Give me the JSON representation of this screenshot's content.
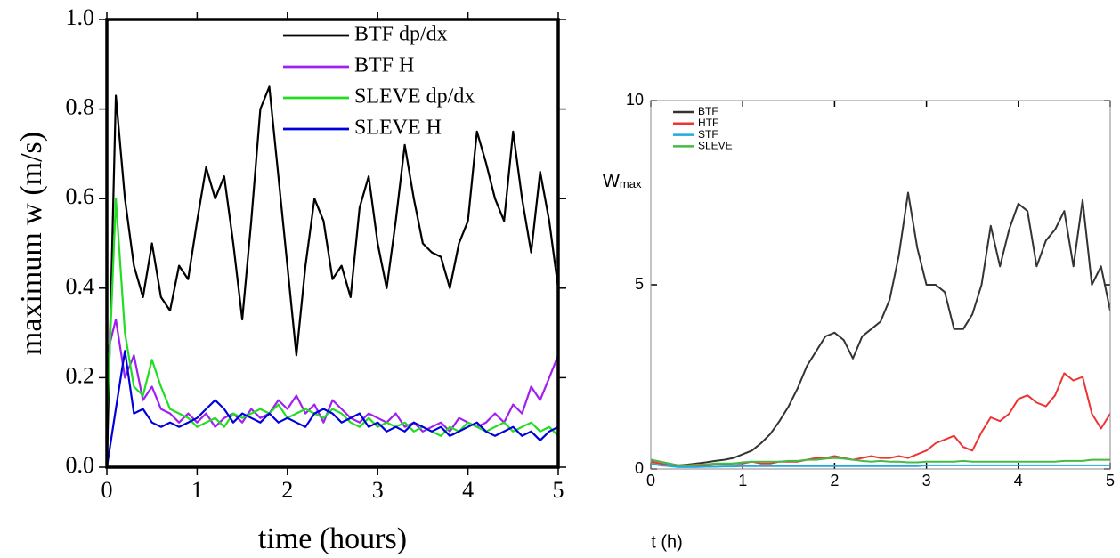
{
  "chart_data": [
    {
      "type": "line",
      "xlabel": "time (hours)",
      "ylabel": "maximum w (m/s)",
      "x": [
        0,
        0.1,
        0.2,
        0.3,
        0.4,
        0.5,
        0.6,
        0.7,
        0.8,
        0.9,
        1,
        1.1,
        1.2,
        1.3,
        1.4,
        1.5,
        1.6,
        1.7,
        1.8,
        1.9,
        2,
        2.1,
        2.2,
        2.3,
        2.4,
        2.5,
        2.6,
        2.7,
        2.8,
        2.9,
        3,
        3.1,
        3.2,
        3.3,
        3.4,
        3.5,
        3.6,
        3.7,
        3.8,
        3.9,
        4,
        4.1,
        4.2,
        4.3,
        4.4,
        4.5,
        4.6,
        4.7,
        4.8,
        4.9,
        5
      ],
      "xlim": [
        0,
        5
      ],
      "xticks": [
        0,
        1,
        2,
        3,
        4,
        5
      ],
      "ylim": [
        0,
        1
      ],
      "yticks": [
        {
          "value": 0,
          "label": "0.0"
        },
        {
          "value": 0.2,
          "label": "0.2"
        },
        {
          "value": 0.4,
          "label": "0.4"
        },
        {
          "value": 0.6,
          "label": "0.6"
        },
        {
          "value": 0.8,
          "label": "0.8"
        },
        {
          "value": 1,
          "label": "1.0"
        }
      ],
      "legend": "top-right",
      "series": [
        {
          "name": "BTF dp/dx",
          "color": "#000000",
          "values": [
            0,
            0.83,
            0.6,
            0.45,
            0.38,
            0.5,
            0.38,
            0.35,
            0.45,
            0.42,
            0.55,
            0.67,
            0.6,
            0.65,
            0.5,
            0.33,
            0.55,
            0.8,
            0.85,
            0.65,
            0.45,
            0.25,
            0.45,
            0.6,
            0.55,
            0.42,
            0.45,
            0.38,
            0.58,
            0.65,
            0.5,
            0.4,
            0.55,
            0.72,
            0.6,
            0.5,
            0.48,
            0.47,
            0.4,
            0.5,
            0.55,
            0.75,
            0.68,
            0.6,
            0.55,
            0.75,
            0.6,
            0.48,
            0.66,
            0.55,
            0.4
          ]
        },
        {
          "name": "BTF H",
          "color": "#a020f0",
          "values": [
            0.25,
            0.33,
            0.2,
            0.25,
            0.15,
            0.18,
            0.13,
            0.12,
            0.1,
            0.12,
            0.1,
            0.12,
            0.09,
            0.11,
            0.12,
            0.1,
            0.13,
            0.11,
            0.12,
            0.15,
            0.13,
            0.16,
            0.12,
            0.14,
            0.1,
            0.15,
            0.13,
            0.11,
            0.1,
            0.12,
            0.11,
            0.1,
            0.12,
            0.09,
            0.1,
            0.08,
            0.09,
            0.1,
            0.08,
            0.11,
            0.1,
            0.09,
            0.1,
            0.12,
            0.1,
            0.14,
            0.12,
            0.18,
            0.15,
            0.2,
            0.25
          ]
        },
        {
          "name": "SLEVE dp/dx",
          "color": "#22dd22",
          "values": [
            0.1,
            0.6,
            0.3,
            0.18,
            0.16,
            0.24,
            0.18,
            0.13,
            0.12,
            0.11,
            0.09,
            0.1,
            0.11,
            0.09,
            0.12,
            0.11,
            0.12,
            0.13,
            0.12,
            0.14,
            0.11,
            0.12,
            0.13,
            0.12,
            0.11,
            0.13,
            0.12,
            0.1,
            0.09,
            0.11,
            0.09,
            0.1,
            0.09,
            0.1,
            0.08,
            0.09,
            0.08,
            0.07,
            0.09,
            0.08,
            0.1,
            0.09,
            0.08,
            0.09,
            0.1,
            0.08,
            0.09,
            0.1,
            0.08,
            0.09,
            0.07
          ]
        },
        {
          "name": "SLEVE H",
          "color": "#0000dd",
          "values": [
            0,
            0.13,
            0.26,
            0.12,
            0.13,
            0.1,
            0.09,
            0.1,
            0.09,
            0.1,
            0.11,
            0.13,
            0.15,
            0.13,
            0.1,
            0.12,
            0.11,
            0.1,
            0.12,
            0.1,
            0.11,
            0.1,
            0.09,
            0.12,
            0.13,
            0.12,
            0.1,
            0.11,
            0.12,
            0.09,
            0.1,
            0.08,
            0.09,
            0.08,
            0.1,
            0.09,
            0.08,
            0.09,
            0.07,
            0.08,
            0.09,
            0.1,
            0.08,
            0.07,
            0.08,
            0.09,
            0.07,
            0.08,
            0.06,
            0.08,
            0.09
          ]
        }
      ]
    },
    {
      "type": "line",
      "xlabel": "t (h)",
      "ylabel": "W",
      "ylabel_sub": "max",
      "x": [
        0,
        0.1,
        0.2,
        0.3,
        0.4,
        0.5,
        0.6,
        0.7,
        0.8,
        0.9,
        1,
        1.1,
        1.2,
        1.3,
        1.4,
        1.5,
        1.6,
        1.7,
        1.8,
        1.9,
        2,
        2.1,
        2.2,
        2.3,
        2.4,
        2.5,
        2.6,
        2.7,
        2.8,
        2.9,
        3,
        3.1,
        3.2,
        3.3,
        3.4,
        3.5,
        3.6,
        3.7,
        3.8,
        3.9,
        4,
        4.1,
        4.2,
        4.3,
        4.4,
        4.5,
        4.6,
        4.7,
        4.8,
        4.9,
        5
      ],
      "xlim": [
        0,
        5
      ],
      "xticks": [
        0,
        1,
        2,
        3,
        4,
        5
      ],
      "ylim": [
        0,
        10
      ],
      "yticks": [
        0,
        5,
        10
      ],
      "legend": "top-left",
      "series": [
        {
          "name": "BTF",
          "color": "#333333",
          "values": [
            0.25,
            0.2,
            0.15,
            0.1,
            0.12,
            0.15,
            0.18,
            0.22,
            0.25,
            0.3,
            0.4,
            0.5,
            0.7,
            0.95,
            1.3,
            1.7,
            2.2,
            2.8,
            3.2,
            3.6,
            3.7,
            3.5,
            3.0,
            3.6,
            3.8,
            4.0,
            4.6,
            5.8,
            7.5,
            6.0,
            5.0,
            5.0,
            4.8,
            3.8,
            3.8,
            4.2,
            5.0,
            6.6,
            5.5,
            6.5,
            7.2,
            7.0,
            5.5,
            6.2,
            6.5,
            7.0,
            5.5,
            7.3,
            5.0,
            5.5,
            4.3
          ]
        },
        {
          "name": "HTF",
          "color": "#ee3333",
          "values": [
            0.2,
            0.15,
            0.1,
            0.1,
            0.1,
            0.1,
            0.1,
            0.12,
            0.12,
            0.15,
            0.15,
            0.2,
            0.15,
            0.15,
            0.2,
            0.2,
            0.2,
            0.25,
            0.3,
            0.3,
            0.35,
            0.3,
            0.25,
            0.3,
            0.35,
            0.3,
            0.3,
            0.35,
            0.3,
            0.4,
            0.5,
            0.7,
            0.8,
            0.9,
            0.6,
            0.5,
            1.0,
            1.4,
            1.3,
            1.5,
            1.9,
            2.0,
            1.8,
            1.7,
            2.0,
            2.6,
            2.4,
            2.5,
            1.5,
            1.1,
            1.5
          ]
        },
        {
          "name": "STF",
          "color": "#22aadd",
          "values": [
            0.15,
            0.1,
            0.08,
            0.05,
            0.05,
            0.05,
            0.06,
            0.06,
            0.07,
            0.07,
            0.08,
            0.08,
            0.08,
            0.08,
            0.08,
            0.08,
            0.08,
            0.08,
            0.08,
            0.08,
            0.08,
            0.08,
            0.08,
            0.08,
            0.08,
            0.08,
            0.08,
            0.08,
            0.08,
            0.08,
            0.1,
            0.1,
            0.1,
            0.1,
            0.1,
            0.1,
            0.1,
            0.1,
            0.1,
            0.1,
            0.1,
            0.1,
            0.1,
            0.1,
            0.1,
            0.1,
            0.1,
            0.1,
            0.1,
            0.1,
            0.1
          ]
        },
        {
          "name": "SLEVE",
          "color": "#44bb44",
          "values": [
            0.25,
            0.2,
            0.15,
            0.1,
            0.1,
            0.12,
            0.12,
            0.15,
            0.15,
            0.15,
            0.18,
            0.2,
            0.2,
            0.2,
            0.2,
            0.22,
            0.22,
            0.25,
            0.25,
            0.28,
            0.3,
            0.28,
            0.25,
            0.22,
            0.2,
            0.22,
            0.2,
            0.2,
            0.18,
            0.18,
            0.2,
            0.2,
            0.2,
            0.2,
            0.22,
            0.2,
            0.2,
            0.2,
            0.2,
            0.2,
            0.2,
            0.2,
            0.2,
            0.2,
            0.2,
            0.22,
            0.22,
            0.22,
            0.25,
            0.25,
            0.25
          ]
        }
      ]
    }
  ]
}
